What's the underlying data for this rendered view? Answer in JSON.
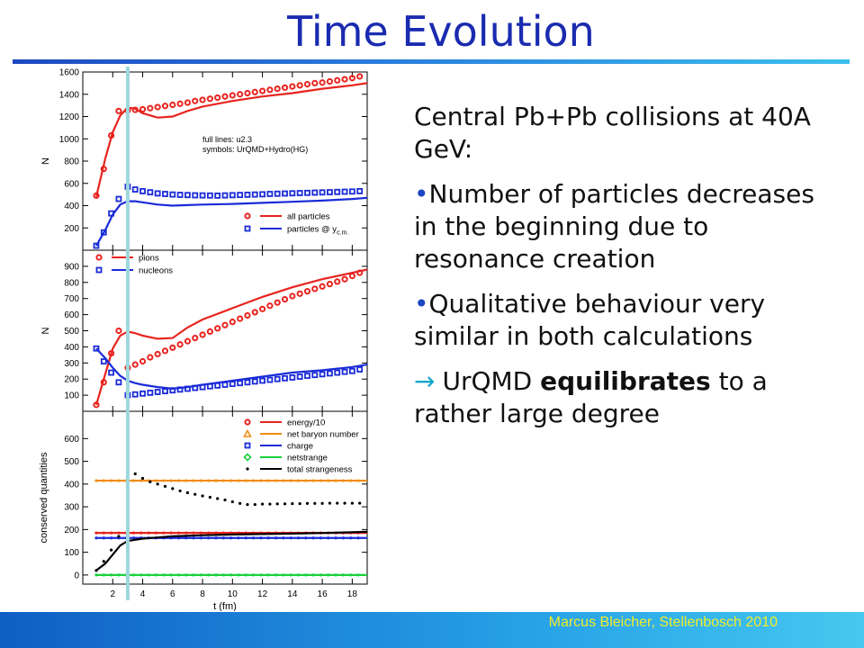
{
  "slide": {
    "title": "Time Evolution",
    "footer": "Marcus Bleicher, Stellenbosch 2010",
    "text": {
      "heading": "Central Pb+Pb collisions at 40A GeV:",
      "bullet1": "Number of particles decreases in the beginning due to resonance creation",
      "bullet2": "Qualitative behaviour very similar in both calculations",
      "conclusion_pre": "UrQMD ",
      "conclusion_bold": "equilibrates",
      "conclusion_post": " to a rather large degree",
      "bullet_symbol": "•",
      "arrow_symbol": "→"
    },
    "colors": {
      "title": "#1a2bb0",
      "red": "#e8231e",
      "blue": "#1a2bd8",
      "orange": "#f08c14",
      "green": "#18d23a",
      "black": "#000000",
      "marker_line": "#9ed7dc"
    }
  },
  "chart_data": [
    {
      "type": "line",
      "panel": "top",
      "ylabel": "N",
      "xlim": [
        0,
        19
      ],
      "ylim": [
        0,
        1600
      ],
      "yticks": [
        "200",
        "400",
        "600",
        "800",
        "1000",
        "1200",
        "1400",
        "1600"
      ],
      "legend_note": [
        "full lines: u2.3",
        "symbols: UrQMD+Hydro(HG)"
      ],
      "legend": [
        {
          "name": "all particles",
          "color": "#e8231e",
          "marker": "circle"
        },
        {
          "name": "particles @ y",
          "sub": "c.m.",
          "color": "#1a2bd8",
          "marker": "square"
        }
      ],
      "series": [
        {
          "name": "all particles",
          "style": "line",
          "color": "#e8231e",
          "x": [
            0.9,
            1.5,
            2,
            2.5,
            3,
            3.5,
            4,
            5,
            6,
            7,
            8,
            10,
            12,
            14,
            16,
            18,
            19
          ],
          "y": [
            480,
            820,
            1060,
            1210,
            1280,
            1270,
            1230,
            1190,
            1200,
            1250,
            1290,
            1340,
            1380,
            1410,
            1450,
            1480,
            1500
          ]
        },
        {
          "name": "particles @ y c.m.",
          "style": "line",
          "color": "#1a2bd8",
          "x": [
            0.9,
            1.5,
            2,
            2.5,
            3,
            3.5,
            4,
            5,
            6,
            7,
            8,
            10,
            12,
            14,
            16,
            18,
            19
          ],
          "y": [
            40,
            180,
            320,
            410,
            440,
            440,
            430,
            410,
            400,
            405,
            410,
            415,
            425,
            435,
            445,
            460,
            470
          ]
        },
        {
          "name": "all particles (UrQMD+Hydro)",
          "style": "circle",
          "color": "#e8231e",
          "x": [
            0.9,
            1.4,
            1.9,
            2.4,
            3,
            3.5,
            4,
            4.5,
            5,
            5.5,
            6,
            6.5,
            7,
            7.5,
            8,
            8.5,
            9,
            9.5,
            10,
            10.5,
            11,
            11.5,
            12,
            12.5,
            13,
            13.5,
            14,
            14.5,
            15,
            15.5,
            16,
            16.5,
            17,
            17.5,
            18,
            18.5
          ],
          "y": [
            490,
            730,
            1030,
            1250,
            1255,
            1260,
            1265,
            1275,
            1285,
            1295,
            1305,
            1315,
            1325,
            1340,
            1350,
            1360,
            1370,
            1380,
            1390,
            1400,
            1410,
            1420,
            1430,
            1440,
            1450,
            1460,
            1470,
            1480,
            1490,
            1500,
            1505,
            1515,
            1525,
            1535,
            1545,
            1560
          ]
        },
        {
          "name": "particles @ y c.m. (UrQMD+Hydro)",
          "style": "square",
          "color": "#1a2bd8",
          "x": [
            0.9,
            1.4,
            1.9,
            2.4,
            3,
            3.5,
            4,
            4.5,
            5,
            5.5,
            6,
            6.5,
            7,
            7.5,
            8,
            8.5,
            9,
            9.5,
            10,
            10.5,
            11,
            11.5,
            12,
            12.5,
            13,
            13.5,
            14,
            14.5,
            15,
            15.5,
            16,
            16.5,
            17,
            17.5,
            18,
            18.5
          ],
          "y": [
            40,
            160,
            330,
            460,
            570,
            545,
            530,
            520,
            510,
            505,
            500,
            497,
            495,
            493,
            492,
            491,
            490,
            492,
            494,
            496,
            498,
            500,
            502,
            505,
            507,
            509,
            511,
            513,
            515,
            517,
            519,
            521,
            523,
            525,
            527,
            530
          ]
        }
      ]
    },
    {
      "type": "line",
      "panel": "middle",
      "ylabel": "N",
      "xlim": [
        0,
        19
      ],
      "ylim": [
        0,
        1000
      ],
      "yticks": [
        "100",
        "200",
        "300",
        "400",
        "500",
        "600",
        "700",
        "800",
        "900"
      ],
      "legend": [
        {
          "name": "pions",
          "color": "#e8231e",
          "marker": "circle"
        },
        {
          "name": "nucleons",
          "color": "#1a2bd8",
          "marker": "square"
        }
      ],
      "series": [
        {
          "name": "pions",
          "style": "line",
          "color": "#e8231e",
          "x": [
            0.9,
            1.5,
            2,
            2.5,
            3,
            3.5,
            4,
            5,
            6,
            7,
            8,
            10,
            12,
            14,
            16,
            18,
            19
          ],
          "y": [
            40,
            230,
            390,
            470,
            495,
            485,
            470,
            450,
            455,
            520,
            570,
            640,
            710,
            770,
            820,
            860,
            880
          ]
        },
        {
          "name": "nucleons",
          "style": "line",
          "color": "#1a2bd8",
          "x": [
            0.9,
            1.5,
            2,
            2.5,
            3,
            3.5,
            4,
            5,
            6,
            7,
            8,
            10,
            12,
            14,
            16,
            18,
            19
          ],
          "y": [
            390,
            330,
            270,
            220,
            190,
            175,
            165,
            150,
            140,
            150,
            165,
            190,
            215,
            240,
            255,
            275,
            290
          ]
        },
        {
          "name": "pions (UrQMD+Hydro)",
          "style": "circle",
          "color": "#e8231e",
          "x": [
            0.9,
            1.4,
            1.9,
            2.4,
            3,
            3.5,
            4,
            4.5,
            5,
            5.5,
            6,
            6.5,
            7,
            7.5,
            8,
            8.5,
            9,
            9.5,
            10,
            10.5,
            11,
            11.5,
            12,
            12.5,
            13,
            13.5,
            14,
            14.5,
            15,
            15.5,
            16,
            16.5,
            17,
            17.5,
            18,
            18.5
          ],
          "y": [
            40,
            180,
            360,
            500,
            270,
            290,
            310,
            335,
            355,
            375,
            395,
            415,
            435,
            455,
            475,
            495,
            515,
            535,
            555,
            575,
            595,
            615,
            635,
            655,
            675,
            695,
            715,
            730,
            745,
            760,
            775,
            790,
            805,
            820,
            840,
            860
          ]
        },
        {
          "name": "nucleons (UrQMD+Hydro)",
          "style": "square",
          "color": "#1a2bd8",
          "x": [
            0.9,
            1.4,
            1.9,
            2.4,
            3,
            3.5,
            4,
            4.5,
            5,
            5.5,
            6,
            6.5,
            7,
            7.5,
            8,
            8.5,
            9,
            9.5,
            10,
            10.5,
            11,
            11.5,
            12,
            12.5,
            13,
            13.5,
            14,
            14.5,
            15,
            15.5,
            16,
            16.5,
            17,
            17.5,
            18,
            18.5
          ],
          "y": [
            390,
            310,
            240,
            180,
            100,
            105,
            110,
            115,
            120,
            125,
            130,
            135,
            140,
            145,
            150,
            155,
            160,
            165,
            170,
            175,
            180,
            185,
            190,
            195,
            200,
            205,
            210,
            215,
            220,
            225,
            230,
            235,
            240,
            245,
            250,
            260
          ]
        }
      ]
    },
    {
      "type": "line",
      "panel": "bottom",
      "ylabel": "conserved quantities",
      "xlabel": "t (fm)",
      "xlim": [
        0,
        19
      ],
      "ylim": [
        -40,
        720
      ],
      "xticks": [
        "2",
        "4",
        "6",
        "8",
        "10",
        "12",
        "14",
        "16",
        "18"
      ],
      "yticks": [
        "0",
        "100",
        "200",
        "300",
        "400",
        "500",
        "600"
      ],
      "legend": [
        {
          "name": "energy/10",
          "color": "#e8231e",
          "marker": "circle"
        },
        {
          "name": "net baryon number",
          "color": "#f08c14",
          "marker": "triangle"
        },
        {
          "name": "charge",
          "color": "#1a2bd8",
          "marker": "square"
        },
        {
          "name": "netstrange",
          "color": "#18d23a",
          "marker": "diamond"
        },
        {
          "name": "total strangeness",
          "color": "#000000",
          "marker": "dot"
        }
      ],
      "series": [
        {
          "name": "energy/10",
          "color": "#e8231e",
          "line_y": 185,
          "marker_y": 185
        },
        {
          "name": "net baryon number",
          "color": "#f08c14",
          "line_y": 415,
          "marker_y": 415
        },
        {
          "name": "charge",
          "color": "#1a2bd8",
          "line_y": 163,
          "marker_y": 163
        },
        {
          "name": "netstrange",
          "color": "#18d23a",
          "line_y": 0,
          "marker_y": 0
        },
        {
          "name": "total strangeness",
          "style": "line",
          "color": "#000000",
          "x": [
            0.9,
            1.5,
            2,
            2.5,
            3,
            4,
            5,
            6,
            8,
            10,
            12,
            14,
            16,
            18,
            19
          ],
          "y": [
            20,
            50,
            90,
            130,
            150,
            160,
            165,
            170,
            175,
            178,
            180,
            182,
            185,
            188,
            190
          ]
        },
        {
          "name": "total strangeness (UrQMD+Hydro)",
          "style": "dot",
          "color": "#000000",
          "x": [
            0.9,
            1.4,
            1.9,
            2.4,
            3,
            3.5,
            4,
            4.5,
            5,
            5.5,
            6,
            6.5,
            7,
            7.5,
            8,
            8.5,
            9,
            9.5,
            10,
            10.5,
            11,
            11.5,
            12,
            12.5,
            13,
            13.5,
            14,
            14.5,
            15,
            15.5,
            16,
            16.5,
            17,
            17.5,
            18,
            18.5
          ],
          "y": [
            20,
            60,
            110,
            170,
            440,
            445,
            425,
            410,
            400,
            390,
            380,
            370,
            362,
            355,
            348,
            342,
            336,
            330,
            322,
            315,
            310,
            310,
            312,
            312,
            313,
            313,
            314,
            314,
            315,
            315,
            315,
            316,
            316,
            316,
            316,
            316
          ]
        }
      ]
    }
  ]
}
